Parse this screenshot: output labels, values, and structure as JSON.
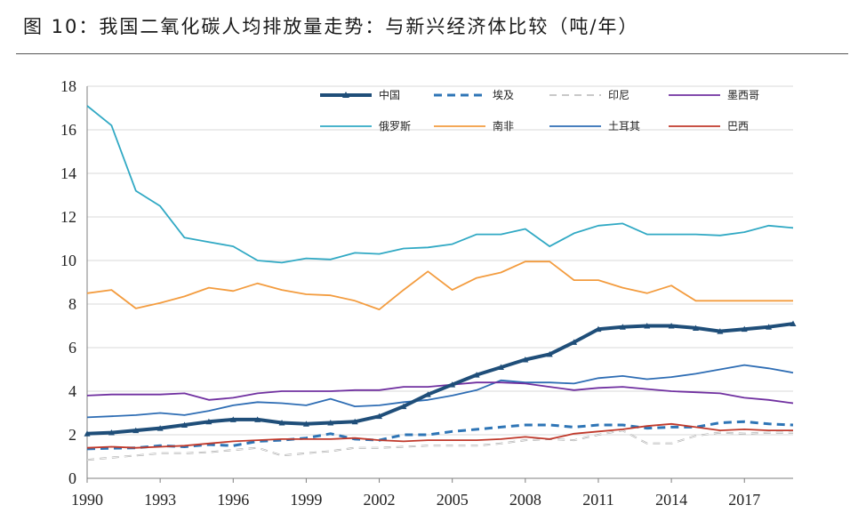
{
  "title": "图 10：我国二氧化碳人均排放量走势：与新兴经济体比较（吨/年）",
  "chart_data": {
    "type": "line",
    "title": "图 10：我国二氧化碳人均排放量走势：与新兴经济体比较（吨/年）",
    "xlabel": "",
    "ylabel": "",
    "ylim": [
      0,
      18
    ],
    "xlim": [
      1990,
      2019
    ],
    "yticks": [
      0,
      2,
      4,
      6,
      8,
      10,
      12,
      14,
      16,
      18
    ],
    "xticks": [
      1990,
      1993,
      1996,
      1999,
      2002,
      2005,
      2008,
      2011,
      2014,
      2017
    ],
    "grid": "horizontal",
    "legend_position": "top",
    "x": [
      1990,
      1991,
      1992,
      1993,
      1994,
      1995,
      1996,
      1997,
      1998,
      1999,
      2000,
      2001,
      2002,
      2003,
      2004,
      2005,
      2006,
      2007,
      2008,
      2009,
      2010,
      2011,
      2012,
      2013,
      2014,
      2015,
      2016,
      2017,
      2018,
      2019
    ],
    "series": [
      {
        "name": "中国",
        "color": "#1f4e79",
        "style": "thick-marker",
        "values": [
          2.05,
          2.1,
          2.2,
          2.3,
          2.45,
          2.6,
          2.7,
          2.7,
          2.55,
          2.5,
          2.55,
          2.6,
          2.85,
          3.3,
          3.85,
          4.3,
          4.75,
          5.1,
          5.45,
          5.7,
          6.25,
          6.85,
          6.95,
          7.0,
          7.0,
          6.9,
          6.75,
          6.85,
          6.95,
          7.1
        ]
      },
      {
        "name": "埃及",
        "color": "#2e75b6",
        "style": "dashed",
        "values": [
          1.35,
          1.38,
          1.4,
          1.5,
          1.45,
          1.55,
          1.5,
          1.7,
          1.75,
          1.85,
          2.05,
          1.8,
          1.75,
          2.0,
          2.0,
          2.15,
          2.25,
          2.35,
          2.45,
          2.45,
          2.35,
          2.45,
          2.45,
          2.3,
          2.35,
          2.35,
          2.55,
          2.6,
          2.5,
          2.45
        ]
      },
      {
        "name": "印尼",
        "color": "#a6a6a6",
        "style": "dashed-double",
        "values": [
          0.85,
          0.95,
          1.05,
          1.15,
          1.15,
          1.2,
          1.3,
          1.4,
          1.05,
          1.15,
          1.25,
          1.4,
          1.4,
          1.45,
          1.5,
          1.5,
          1.5,
          1.6,
          1.75,
          1.8,
          1.75,
          2.0,
          2.2,
          1.6,
          1.6,
          1.95,
          2.1,
          2.05,
          2.1,
          2.1
        ]
      },
      {
        "name": "墨西哥",
        "color": "#7030a0",
        "style": "solid",
        "values": [
          3.8,
          3.85,
          3.85,
          3.85,
          3.9,
          3.6,
          3.7,
          3.9,
          4.0,
          4.0,
          4.0,
          4.05,
          4.05,
          4.2,
          4.2,
          4.3,
          4.4,
          4.4,
          4.35,
          4.2,
          4.05,
          4.15,
          4.2,
          4.1,
          4.0,
          3.95,
          3.9,
          3.7,
          3.6,
          3.45
        ]
      },
      {
        "name": "俄罗斯",
        "color": "#31a9c4",
        "style": "solid",
        "values": [
          17.1,
          16.2,
          13.2,
          12.5,
          11.05,
          10.85,
          10.65,
          10.0,
          9.9,
          10.1,
          10.05,
          10.35,
          10.3,
          10.55,
          10.6,
          10.75,
          11.2,
          11.2,
          11.45,
          10.65,
          11.25,
          11.6,
          11.7,
          11.2,
          11.2,
          11.2,
          11.15,
          11.3,
          11.6,
          11.5
        ]
      },
      {
        "name": "南非",
        "color": "#f39c3f",
        "style": "solid",
        "values": [
          8.5,
          8.65,
          7.8,
          8.05,
          8.35,
          8.75,
          8.6,
          8.95,
          8.65,
          8.45,
          8.4,
          8.15,
          7.75,
          8.65,
          9.5,
          8.65,
          9.2,
          9.45,
          9.95,
          9.95,
          9.1,
          9.1,
          8.75,
          8.5,
          8.85,
          8.15,
          8.15,
          8.15,
          8.15,
          8.15
        ]
      },
      {
        "name": "土耳其",
        "color": "#2e6db4",
        "style": "solid",
        "values": [
          2.8,
          2.85,
          2.9,
          3.0,
          2.9,
          3.1,
          3.35,
          3.5,
          3.45,
          3.35,
          3.65,
          3.3,
          3.35,
          3.5,
          3.6,
          3.8,
          4.05,
          4.5,
          4.4,
          4.4,
          4.35,
          4.6,
          4.7,
          4.55,
          4.65,
          4.8,
          5.0,
          5.2,
          5.05,
          4.85
        ]
      },
      {
        "name": "巴西",
        "color": "#c0392b",
        "style": "solid",
        "values": [
          1.4,
          1.45,
          1.4,
          1.45,
          1.5,
          1.6,
          1.7,
          1.75,
          1.8,
          1.8,
          1.8,
          1.85,
          1.75,
          1.7,
          1.75,
          1.75,
          1.75,
          1.8,
          1.9,
          1.8,
          2.05,
          2.15,
          2.25,
          2.4,
          2.5,
          2.35,
          2.2,
          2.25,
          2.2,
          2.2
        ]
      }
    ]
  }
}
